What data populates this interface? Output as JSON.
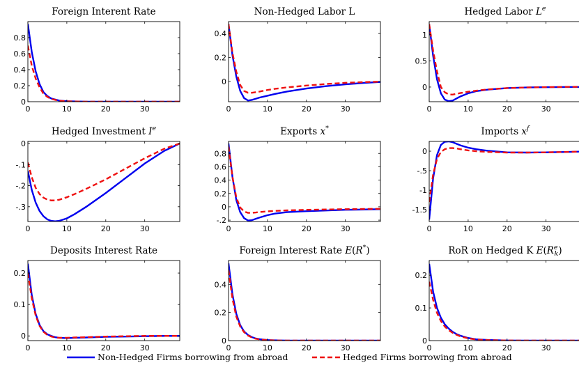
{
  "colors": {
    "non_hedged": "#0000ee",
    "hedged": "#ee1111"
  },
  "legend": {
    "placement": "bottom",
    "entries": [
      {
        "series": "non_hedged",
        "label": "Non-Hedged Firms borrowing from abroad"
      },
      {
        "series": "hedged",
        "label": "Hedged Firms borrowing from abroad"
      }
    ]
  },
  "chart_data": [
    {
      "type": "line",
      "title": "Foreign Interent Rate",
      "xlim": [
        0,
        39
      ],
      "ylim": [
        0,
        1
      ],
      "xticks": [
        0,
        10,
        20,
        30
      ],
      "yticks": [
        0,
        0.2,
        0.4,
        0.6,
        0.8
      ],
      "series": [
        {
          "key": "non_hedged",
          "x": [
            0,
            1,
            2,
            3,
            4,
            5,
            6,
            8,
            10,
            15,
            20,
            39
          ],
          "y": [
            0.97,
            0.62,
            0.38,
            0.22,
            0.12,
            0.07,
            0.04,
            0.015,
            0.006,
            0,
            0,
            0
          ]
        },
        {
          "key": "hedged",
          "x": [
            0,
            1,
            2,
            3,
            4,
            5,
            6,
            8,
            10,
            15,
            20,
            39
          ],
          "y": [
            0.7,
            0.45,
            0.29,
            0.18,
            0.1,
            0.06,
            0.035,
            0.012,
            0.005,
            0,
            0,
            0
          ]
        }
      ]
    },
    {
      "type": "line",
      "title": "Non-Hedged Labor L",
      "xlim": [
        0,
        39
      ],
      "ylim": [
        -0.17,
        0.5
      ],
      "xticks": [
        0,
        10,
        20,
        30
      ],
      "yticks": [
        0,
        0.2,
        0.4
      ],
      "series": [
        {
          "key": "non_hedged",
          "x": [
            0,
            1,
            2,
            3,
            4,
            5,
            6,
            7,
            8,
            10,
            12,
            15,
            20,
            25,
            30,
            35,
            39
          ],
          "y": [
            0.48,
            0.22,
            0.04,
            -0.08,
            -0.14,
            -0.16,
            -0.155,
            -0.145,
            -0.135,
            -0.12,
            -0.105,
            -0.085,
            -0.06,
            -0.04,
            -0.025,
            -0.012,
            -0.005
          ]
        },
        {
          "key": "hedged",
          "x": [
            0,
            1,
            2,
            3,
            4,
            5,
            6,
            7,
            8,
            10,
            12,
            15,
            20,
            25,
            30,
            35,
            39
          ],
          "y": [
            0.48,
            0.24,
            0.08,
            -0.03,
            -0.08,
            -0.095,
            -0.095,
            -0.09,
            -0.085,
            -0.072,
            -0.062,
            -0.05,
            -0.035,
            -0.022,
            -0.012,
            -0.006,
            -0.002
          ]
        }
      ]
    },
    {
      "type": "line",
      "title": "Hedged Labor L^e",
      "xlim": [
        0,
        39
      ],
      "ylim": [
        -0.28,
        1.25
      ],
      "xticks": [
        0,
        10,
        20,
        30
      ],
      "yticks": [
        0,
        0.5,
        1
      ],
      "series": [
        {
          "key": "non_hedged",
          "x": [
            0,
            1,
            2,
            3,
            4,
            5,
            6,
            7,
            8,
            10,
            12,
            15,
            20,
            25,
            30,
            35,
            39
          ],
          "y": [
            1.2,
            0.6,
            0.15,
            -0.12,
            -0.24,
            -0.27,
            -0.26,
            -0.22,
            -0.18,
            -0.12,
            -0.08,
            -0.05,
            -0.02,
            -0.008,
            -0.003,
            0,
            0
          ]
        },
        {
          "key": "hedged",
          "x": [
            0,
            1,
            2,
            3,
            4,
            5,
            6,
            7,
            8,
            10,
            12,
            15,
            20,
            25,
            30,
            35,
            39
          ],
          "y": [
            1.2,
            0.7,
            0.3,
            0.0,
            -0.1,
            -0.14,
            -0.145,
            -0.13,
            -0.115,
            -0.09,
            -0.07,
            -0.045,
            -0.02,
            -0.008,
            -0.002,
            0.003,
            0.005
          ]
        }
      ]
    },
    {
      "type": "line",
      "title": "Hedged Investment I^e",
      "xlim": [
        0,
        39
      ],
      "ylim": [
        -0.37,
        0.01
      ],
      "xticks": [
        0,
        10,
        20,
        30
      ],
      "yticks": [
        0,
        -0.1,
        -0.2,
        -0.3
      ],
      "series": [
        {
          "key": "non_hedged",
          "x": [
            0,
            1,
            2,
            3,
            4,
            5,
            6,
            7,
            8,
            10,
            12,
            15,
            20,
            25,
            30,
            35,
            39
          ],
          "y": [
            -0.13,
            -0.22,
            -0.28,
            -0.32,
            -0.345,
            -0.36,
            -0.367,
            -0.369,
            -0.367,
            -0.355,
            -0.335,
            -0.3,
            -0.235,
            -0.165,
            -0.095,
            -0.035,
            0
          ]
        },
        {
          "key": "hedged",
          "x": [
            0,
            1,
            2,
            3,
            4,
            5,
            6,
            7,
            8,
            10,
            12,
            15,
            20,
            25,
            30,
            35,
            39
          ],
          "y": [
            -0.09,
            -0.16,
            -0.21,
            -0.24,
            -0.257,
            -0.266,
            -0.27,
            -0.27,
            -0.267,
            -0.255,
            -0.24,
            -0.215,
            -0.17,
            -0.12,
            -0.07,
            -0.025,
            0
          ]
        }
      ]
    },
    {
      "type": "line",
      "title": "Exports x^*",
      "xlim": [
        0,
        39
      ],
      "ylim": [
        -0.22,
        0.98
      ],
      "xticks": [
        0,
        10,
        20,
        30
      ],
      "yticks": [
        -0.2,
        0,
        0.2,
        0.4,
        0.6,
        0.8
      ],
      "series": [
        {
          "key": "non_hedged",
          "x": [
            0,
            1,
            2,
            3,
            4,
            5,
            6,
            7,
            8,
            10,
            12,
            15,
            20,
            25,
            30,
            35,
            39
          ],
          "y": [
            0.95,
            0.45,
            0.1,
            -0.08,
            -0.17,
            -0.205,
            -0.2,
            -0.18,
            -0.16,
            -0.125,
            -0.1,
            -0.08,
            -0.065,
            -0.055,
            -0.045,
            -0.04,
            -0.035
          ]
        },
        {
          "key": "hedged",
          "x": [
            0,
            1,
            2,
            3,
            4,
            5,
            6,
            7,
            8,
            10,
            12,
            15,
            20,
            25,
            30,
            35,
            39
          ],
          "y": [
            0.9,
            0.45,
            0.14,
            -0.01,
            -0.07,
            -0.09,
            -0.09,
            -0.085,
            -0.078,
            -0.068,
            -0.06,
            -0.053,
            -0.045,
            -0.04,
            -0.035,
            -0.032,
            -0.03
          ]
        }
      ]
    },
    {
      "type": "line",
      "title": "Imports x^f",
      "xlim": [
        0,
        39
      ],
      "ylim": [
        -1.8,
        0.25
      ],
      "xticks": [
        0,
        10,
        20,
        30
      ],
      "yticks": [
        0,
        -0.5,
        -1,
        -1.5
      ],
      "series": [
        {
          "key": "non_hedged",
          "x": [
            0,
            1,
            2,
            3,
            4,
            5,
            6,
            7,
            8,
            10,
            12,
            15,
            20,
            25,
            30,
            35,
            39
          ],
          "y": [
            -1.75,
            -0.7,
            -0.1,
            0.16,
            0.24,
            0.25,
            0.23,
            0.19,
            0.15,
            0.09,
            0.05,
            0.01,
            -0.03,
            -0.035,
            -0.03,
            -0.02,
            -0.01
          ]
        },
        {
          "key": "hedged",
          "x": [
            0,
            1,
            2,
            3,
            4,
            5,
            6,
            7,
            8,
            10,
            12,
            15,
            20,
            25,
            30,
            35,
            39
          ],
          "y": [
            -1.3,
            -0.6,
            -0.2,
            -0.02,
            0.05,
            0.08,
            0.08,
            0.07,
            0.05,
            0.02,
            0.0,
            -0.02,
            -0.035,
            -0.035,
            -0.03,
            -0.02,
            -0.01
          ]
        }
      ]
    },
    {
      "type": "line",
      "title": "Deposits Interest Rate",
      "xlim": [
        0,
        39
      ],
      "ylim": [
        -0.015,
        0.24
      ],
      "xticks": [
        0,
        10,
        20,
        30
      ],
      "yticks": [
        0,
        0.1,
        0.2
      ],
      "series": [
        {
          "key": "non_hedged",
          "x": [
            0,
            1,
            2,
            3,
            4,
            5,
            6,
            7,
            8,
            10,
            12,
            15,
            20,
            25,
            30,
            35,
            39
          ],
          "y": [
            0.23,
            0.13,
            0.07,
            0.035,
            0.015,
            0.005,
            0.0,
            -0.004,
            -0.006,
            -0.007,
            -0.006,
            -0.005,
            -0.003,
            -0.002,
            -0.001,
            0,
            0
          ]
        },
        {
          "key": "hedged",
          "x": [
            0,
            1,
            2,
            3,
            4,
            5,
            6,
            7,
            8,
            10,
            12,
            15,
            20,
            25,
            30,
            35,
            39
          ],
          "y": [
            0.2,
            0.12,
            0.065,
            0.032,
            0.013,
            0.003,
            -0.002,
            -0.005,
            -0.006,
            -0.006,
            -0.005,
            -0.004,
            -0.002,
            -0.001,
            0,
            0,
            0
          ]
        }
      ]
    },
    {
      "type": "line",
      "title": "Foreign Interest Rate E(R^*)",
      "xlim": [
        0,
        39
      ],
      "ylim": [
        0,
        0.57
      ],
      "xticks": [
        0,
        10,
        20,
        30
      ],
      "yticks": [
        0,
        0.2,
        0.4
      ],
      "series": [
        {
          "key": "non_hedged",
          "x": [
            0,
            1,
            2,
            3,
            4,
            5,
            6,
            7,
            8,
            10,
            12,
            15,
            20,
            39
          ],
          "y": [
            0.55,
            0.33,
            0.19,
            0.11,
            0.065,
            0.04,
            0.025,
            0.015,
            0.01,
            0.004,
            0.002,
            0,
            0,
            0
          ]
        },
        {
          "key": "hedged",
          "x": [
            0,
            1,
            2,
            3,
            4,
            5,
            6,
            7,
            8,
            10,
            12,
            15,
            20,
            39
          ],
          "y": [
            0.5,
            0.3,
            0.17,
            0.1,
            0.06,
            0.036,
            0.022,
            0.013,
            0.008,
            0.003,
            0.001,
            0,
            0,
            0
          ]
        }
      ]
    },
    {
      "type": "line",
      "title": "RoR on Hedged K E(R_k^e)",
      "xlim": [
        0,
        39
      ],
      "ylim": [
        0,
        0.245
      ],
      "xticks": [
        0,
        10,
        20,
        30
      ],
      "yticks": [
        0,
        0.1,
        0.2
      ],
      "series": [
        {
          "key": "non_hedged",
          "x": [
            0,
            1,
            2,
            3,
            4,
            5,
            6,
            7,
            8,
            10,
            12,
            15,
            20,
            25,
            39
          ],
          "y": [
            0.235,
            0.15,
            0.1,
            0.07,
            0.05,
            0.037,
            0.027,
            0.02,
            0.015,
            0.008,
            0.004,
            0.002,
            0.0005,
            0,
            0
          ]
        },
        {
          "key": "hedged",
          "x": [
            0,
            1,
            2,
            3,
            4,
            5,
            6,
            7,
            8,
            10,
            12,
            15,
            20,
            25,
            39
          ],
          "y": [
            0.18,
            0.125,
            0.085,
            0.06,
            0.043,
            0.032,
            0.024,
            0.018,
            0.013,
            0.007,
            0.0035,
            0.0015,
            0.0004,
            0,
            0
          ]
        }
      ]
    }
  ]
}
